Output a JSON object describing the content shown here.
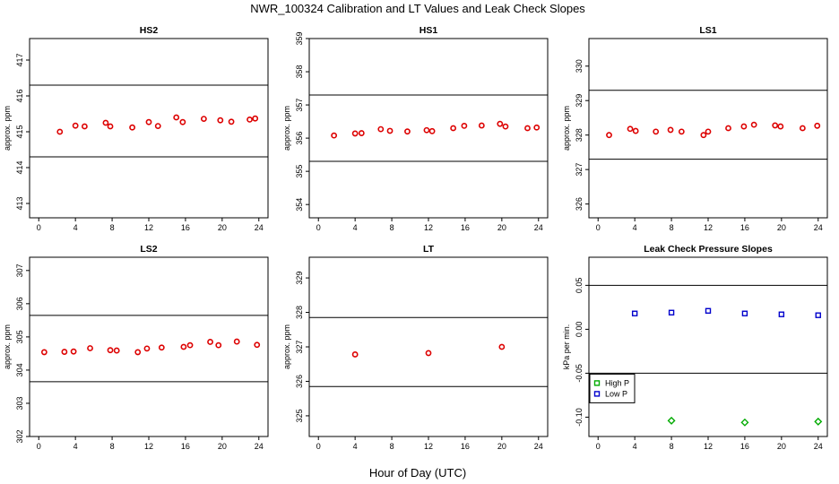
{
  "figure": {
    "title": "NWR_100324  Calibration and LT Values and Leak Check Slopes",
    "xlabel": "Hour of Day (UTC)"
  },
  "chart_data": [
    {
      "type": "scatter",
      "title": "HS2",
      "ylabel": "approx. ppm",
      "xlim": [
        -1,
        25
      ],
      "ylim": [
        412.6,
        417.6
      ],
      "xticks": [
        0,
        4,
        8,
        12,
        16,
        20,
        24
      ],
      "yticks": [
        413,
        414,
        415,
        416,
        417
      ],
      "hlines": [
        416.3,
        414.3
      ],
      "grid": false,
      "marker_color": "#dd0000",
      "series": [
        {
          "marker": "circle",
          "x": [
            2.3,
            4.0,
            5.0,
            7.3,
            7.8,
            10.2,
            12.0,
            13.0,
            15.0,
            15.7,
            18.0,
            19.8,
            21.0,
            23.0,
            23.6
          ],
          "y": [
            415.0,
            415.17,
            415.15,
            415.25,
            415.15,
            415.12,
            415.27,
            415.16,
            415.4,
            415.27,
            415.36,
            415.32,
            415.28,
            415.34,
            415.37
          ]
        }
      ]
    },
    {
      "type": "scatter",
      "title": "HS1",
      "ylabel": "approx. ppm",
      "xlim": [
        -1,
        25
      ],
      "ylim": [
        353.6,
        359.0
      ],
      "xticks": [
        0,
        4,
        8,
        12,
        16,
        20,
        24
      ],
      "yticks": [
        354,
        355,
        356,
        357,
        358,
        359
      ],
      "hlines": [
        357.3,
        355.3
      ],
      "grid": false,
      "marker_color": "#dd0000",
      "series": [
        {
          "marker": "circle",
          "x": [
            1.7,
            4.0,
            4.7,
            6.8,
            7.8,
            9.7,
            11.8,
            12.4,
            14.7,
            15.9,
            17.8,
            19.8,
            20.4,
            22.8,
            23.8
          ],
          "y": [
            356.08,
            356.14,
            356.15,
            356.27,
            356.22,
            356.2,
            356.24,
            356.21,
            356.3,
            356.37,
            356.38,
            356.43,
            356.35,
            356.3,
            356.32
          ]
        }
      ]
    },
    {
      "type": "scatter",
      "title": "LS1",
      "ylabel": "approx. ppm",
      "xlim": [
        -1,
        25
      ],
      "ylim": [
        325.6,
        330.8
      ],
      "xticks": [
        0,
        4,
        8,
        12,
        16,
        20,
        24
      ],
      "yticks": [
        326,
        327,
        328,
        329,
        330
      ],
      "hlines": [
        329.3,
        327.3
      ],
      "grid": false,
      "marker_color": "#dd0000",
      "series": [
        {
          "marker": "circle",
          "x": [
            1.2,
            3.5,
            4.1,
            6.3,
            7.9,
            9.1,
            11.5,
            12.0,
            14.2,
            15.9,
            17.0,
            19.3,
            19.9,
            22.3,
            23.9
          ],
          "y": [
            328.0,
            328.18,
            328.12,
            328.1,
            328.15,
            328.1,
            328.0,
            328.1,
            328.2,
            328.25,
            328.3,
            328.28,
            328.25,
            328.2,
            328.27
          ]
        }
      ]
    },
    {
      "type": "scatter",
      "title": "LS2",
      "ylabel": "approx. ppm",
      "xlim": [
        -1,
        25
      ],
      "ylim": [
        302.0,
        307.4
      ],
      "xticks": [
        0,
        4,
        8,
        12,
        16,
        20,
        24
      ],
      "yticks": [
        302,
        303,
        304,
        305,
        306,
        307
      ],
      "hlines": [
        305.65,
        303.65
      ],
      "grid": false,
      "marker_color": "#dd0000",
      "series": [
        {
          "marker": "circle",
          "x": [
            0.6,
            2.8,
            3.8,
            5.6,
            7.8,
            8.5,
            10.8,
            11.8,
            13.4,
            15.8,
            16.5,
            18.7,
            19.6,
            21.6,
            23.8
          ],
          "y": [
            304.54,
            304.55,
            304.56,
            304.66,
            304.6,
            304.59,
            304.54,
            304.65,
            304.68,
            304.7,
            304.75,
            304.85,
            304.75,
            304.86,
            304.76
          ]
        }
      ]
    },
    {
      "type": "scatter",
      "title": "LT",
      "ylabel": "approx. ppm",
      "xlim": [
        -1,
        25
      ],
      "ylim": [
        324.4,
        329.6
      ],
      "xticks": [
        0,
        4,
        8,
        12,
        16,
        20,
        24
      ],
      "yticks": [
        325,
        326,
        327,
        328,
        329
      ],
      "hlines": [
        327.85,
        325.85
      ],
      "grid": false,
      "marker_color": "#dd0000",
      "series": [
        {
          "marker": "circle",
          "x": [
            4.0,
            12.0,
            20.0
          ],
          "y": [
            326.78,
            326.82,
            327.0
          ]
        }
      ]
    },
    {
      "type": "scatter",
      "title": "Leak Check Pressure Slopes",
      "ylabel": "kPa per min.",
      "xlim": [
        -1,
        25
      ],
      "ylim": [
        -0.122,
        0.082
      ],
      "xticks": [
        0,
        4,
        8,
        12,
        16,
        20,
        24
      ],
      "yticks": [
        -0.1,
        -0.05,
        0.0,
        0.05
      ],
      "ytick_labels": [
        "-0.10",
        "-0.05",
        "0.00",
        "0.05"
      ],
      "hlines": [
        0.05,
        -0.05
      ],
      "grid": false,
      "legend": "left",
      "series": [
        {
          "name": "High P",
          "color": "#00aa00",
          "marker": "diamond",
          "x": [
            8,
            16,
            24
          ],
          "y": [
            -0.104,
            -0.106,
            -0.105
          ]
        },
        {
          "name": "Low P",
          "color": "#0000cc",
          "marker": "square",
          "x": [
            4,
            8,
            12,
            16,
            20,
            24
          ],
          "y": [
            0.018,
            0.019,
            0.021,
            0.018,
            0.017,
            0.016
          ]
        }
      ]
    }
  ]
}
